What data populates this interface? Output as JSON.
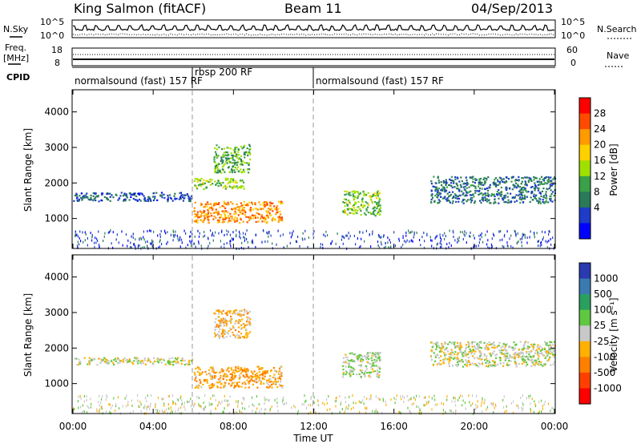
{
  "header": {
    "station": "King Salmon (fitACF)",
    "beam": "Beam 11",
    "date": "04/Sep/2013"
  },
  "top_panels": {
    "noise_left_label": "N.Sky",
    "noise_right_label": "N.Search",
    "noise_left_ticks": [
      "10^5",
      "10^0"
    ],
    "noise_right_ticks": [
      "10^5",
      "10^0"
    ],
    "freq_label_line1": "Freq.",
    "freq_label_line2": "[MHz]",
    "freq_ticks": [
      "18",
      "8"
    ],
    "nave_label": "Nave",
    "nave_ticks": [
      "60",
      "0"
    ],
    "cpid_label": "CPID",
    "cpid_segments": [
      {
        "label": "normalsound (fast) 157 RF",
        "start_hour": 0
      },
      {
        "label": "rbsp 200 RF",
        "start_hour": 6
      },
      {
        "label": "normalsound (fast) 157 RF",
        "start_hour": 12
      }
    ]
  },
  "axes": {
    "ylabel": "Slant Range [km]",
    "xlabel": "Time UT",
    "x_ticks": [
      "00:00",
      "04:00",
      "08:00",
      "12:00",
      "16:00",
      "20:00",
      "00:00"
    ],
    "y_ticks": [
      "1000",
      "2000",
      "3000",
      "4000"
    ]
  },
  "colorbars": {
    "power": {
      "label": "Power [dB]",
      "ticks": [
        "28",
        "24",
        "20",
        "16",
        "12",
        "8",
        "4"
      ],
      "colors": [
        "#ff0000",
        "#ff4a00",
        "#ff9a00",
        "#ffd000",
        "#a0e000",
        "#3aa04a",
        "#2a7a5a",
        "#1e3cc8",
        "#0000ff"
      ]
    },
    "velocity": {
      "label": "Velocity [m s⁻¹]",
      "ticks": [
        "1000",
        "500",
        "100",
        "25",
        "-25",
        "-100",
        "-500",
        "-1000"
      ],
      "colors": [
        "#2a3ab0",
        "#3a7ab0",
        "#2aa060",
        "#60c840",
        "#c8c8c8",
        "#ffb000",
        "#ff8000",
        "#ff4000",
        "#ff0000"
      ]
    }
  },
  "chart_data": {
    "type": "heatmap",
    "title": "King Salmon (fitACF) Beam 11 04/Sep/2013",
    "xlabel": "Time UT",
    "ylabel": "Slant Range [km]",
    "xlim_hours": [
      0,
      24
    ],
    "ylim_km": [
      180,
      4600
    ],
    "time_markers_hours": [
      6,
      12
    ],
    "panels": [
      {
        "name": "Power [dB]",
        "scale": [
          0,
          30
        ],
        "features": [
          {
            "type": "band",
            "t_start": 0.0,
            "t_end": 6.0,
            "range_km": [
              1500,
              1750
            ],
            "value": 6
          },
          {
            "type": "band",
            "t_start": 6.0,
            "t_end": 8.5,
            "range_km": [
              1850,
              2150
            ],
            "value": 14
          },
          {
            "type": "blob",
            "t_start": 6.0,
            "t_end": 10.4,
            "range_km": [
              900,
              1500
            ],
            "value": 22
          },
          {
            "type": "blob",
            "t_start": 7.0,
            "t_end": 8.8,
            "range_km": [
              2300,
              3100
            ],
            "value": 12
          },
          {
            "type": "blob",
            "t_start": 13.4,
            "t_end": 15.3,
            "range_km": [
              1100,
              1800
            ],
            "value": 14
          },
          {
            "type": "band",
            "t_start": 17.8,
            "t_end": 24.0,
            "range_km": [
              1450,
              2200
            ],
            "value": 8
          },
          {
            "type": "scatter",
            "t_start": 0.0,
            "t_end": 24.0,
            "range_km": [
              180,
              700
            ],
            "value": 5
          }
        ]
      },
      {
        "name": "Velocity [m s^-1]",
        "scale": [
          -1000,
          1000
        ],
        "features": [
          {
            "type": "band",
            "t_start": 0.0,
            "t_end": 6.0,
            "range_km": [
              1550,
              1750
            ],
            "value": 0
          },
          {
            "type": "blob",
            "t_start": 6.0,
            "t_end": 10.4,
            "range_km": [
              900,
              1500
            ],
            "value": -300
          },
          {
            "type": "blob",
            "t_start": 7.0,
            "t_end": 8.8,
            "range_km": [
              2300,
              3100
            ],
            "value": -200
          },
          {
            "type": "blob",
            "t_start": 13.4,
            "t_end": 15.3,
            "range_km": [
              1200,
              1900
            ],
            "value": 80
          },
          {
            "type": "band",
            "t_start": 17.8,
            "t_end": 24.0,
            "range_km": [
              1500,
              2200
            ],
            "value": 0
          },
          {
            "type": "scatter",
            "t_start": 0.0,
            "t_end": 24.0,
            "range_km": [
              180,
              700
            ],
            "value": 0
          }
        ]
      }
    ]
  }
}
